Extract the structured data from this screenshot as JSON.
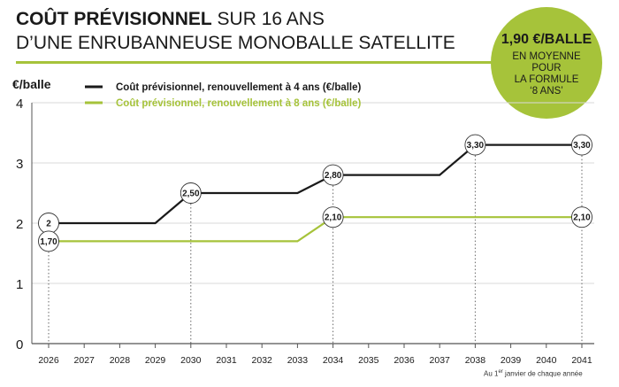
{
  "header": {
    "title_bold": "COÛT PRÉVISIONNEL",
    "title_rest": " SUR 16 ANS",
    "subtitle": "D’UNE ENRUBANNEUSE MONOBALLE SATELLITE"
  },
  "badge": {
    "value": "1,90 €/BALLE",
    "caption_lines": [
      "EN MOYENNE",
      "POUR",
      "LA FORMULE",
      "‘8 ANS’"
    ]
  },
  "colors": {
    "black": "#1a1a1a",
    "green": "#a6c33a",
    "grid": "#d9d9d9"
  },
  "footnote": {
    "prefix": "Au 1",
    "sup": "er",
    "suffix": " janvier de chaque année"
  },
  "chart_data": {
    "type": "line",
    "ylabel": "€/balle",
    "ylim": [
      0,
      4
    ],
    "yticks": [
      "0",
      "1",
      "2",
      "3",
      "4"
    ],
    "x": [
      "2026",
      "2027",
      "2028",
      "2029",
      "2030",
      "2031",
      "2032",
      "2033",
      "2034",
      "2035",
      "2036",
      "2037",
      "2038",
      "2039",
      "2040",
      "2041"
    ],
    "series": [
      {
        "name": "Coût prévisionnel, renouvellement à 4 ans (€/balle)",
        "color": "#1a1a1a",
        "points": [
          [
            2026,
            2
          ],
          [
            2029,
            2
          ],
          [
            2030,
            2.5
          ],
          [
            2033,
            2.5
          ],
          [
            2034,
            2.8
          ],
          [
            2037,
            2.8
          ],
          [
            2038,
            3.3
          ],
          [
            2041,
            3.3
          ]
        ],
        "labels": [
          {
            "year": 2026,
            "value": 2,
            "text": "2"
          },
          {
            "year": 2030,
            "value": 2.5,
            "text": "2,50"
          },
          {
            "year": 2034,
            "value": 2.8,
            "text": "2,80"
          },
          {
            "year": 2038,
            "value": 3.3,
            "text": "3,30"
          },
          {
            "year": 2041,
            "value": 3.3,
            "text": "3,30"
          }
        ]
      },
      {
        "name": "Coût prévisionnel, renouvellement à 8 ans (€/balle)",
        "color": "#a6c33a",
        "points": [
          [
            2026,
            1.7
          ],
          [
            2033,
            1.7
          ],
          [
            2034,
            2.1
          ],
          [
            2041,
            2.1
          ]
        ],
        "labels": [
          {
            "year": 2026,
            "value": 1.7,
            "text": "1,70"
          },
          {
            "year": 2034,
            "value": 2.1,
            "text": "2,10"
          },
          {
            "year": 2041,
            "value": 2.1,
            "text": "2,10"
          }
        ]
      }
    ],
    "dashed_years": [
      2026,
      2030,
      2034,
      2038,
      2041
    ]
  }
}
